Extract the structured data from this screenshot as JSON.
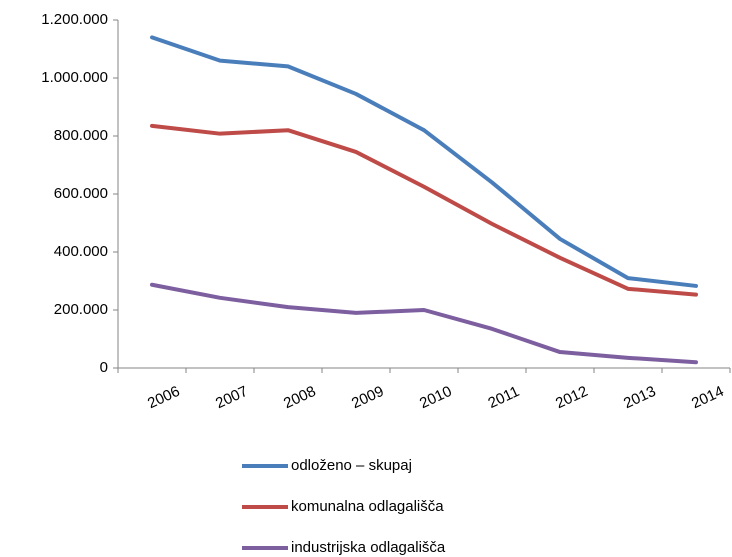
{
  "chart_data": {
    "type": "line",
    "categories": [
      "2006",
      "2007",
      "2008",
      "2009",
      "2010",
      "2011",
      "2012",
      "2013",
      "2014"
    ],
    "series": [
      {
        "name": "odloženo – skupaj",
        "color": "#4a7ebb",
        "values": [
          1140000,
          1060000,
          1040000,
          945000,
          820000,
          640000,
          445000,
          310000,
          283000
        ]
      },
      {
        "name": "komunalna odlagališča",
        "color": "#be4b48",
        "values": [
          835000,
          808000,
          820000,
          745000,
          625000,
          497000,
          380000,
          273000,
          253000
        ]
      },
      {
        "name": "industrijska odlagališča",
        "color": "#7d5fa0",
        "values": [
          287000,
          242000,
          210000,
          190000,
          200000,
          135000,
          55000,
          35000,
          20000
        ]
      }
    ],
    "ylim": [
      0,
      1200000
    ],
    "yticks": [
      0,
      {
        "value": 200000,
        "label": "200.000"
      },
      {
        "value": 400000,
        "label": "400.000"
      },
      {
        "value": 600000,
        "label": "600.000"
      },
      {
        "value": 800000,
        "label": "800.000"
      },
      {
        "value": 1000000,
        "label": "1.000.000"
      },
      {
        "value": 1200000,
        "label": "1.200.000"
      }
    ],
    "grid": false,
    "legend": "bottom"
  }
}
